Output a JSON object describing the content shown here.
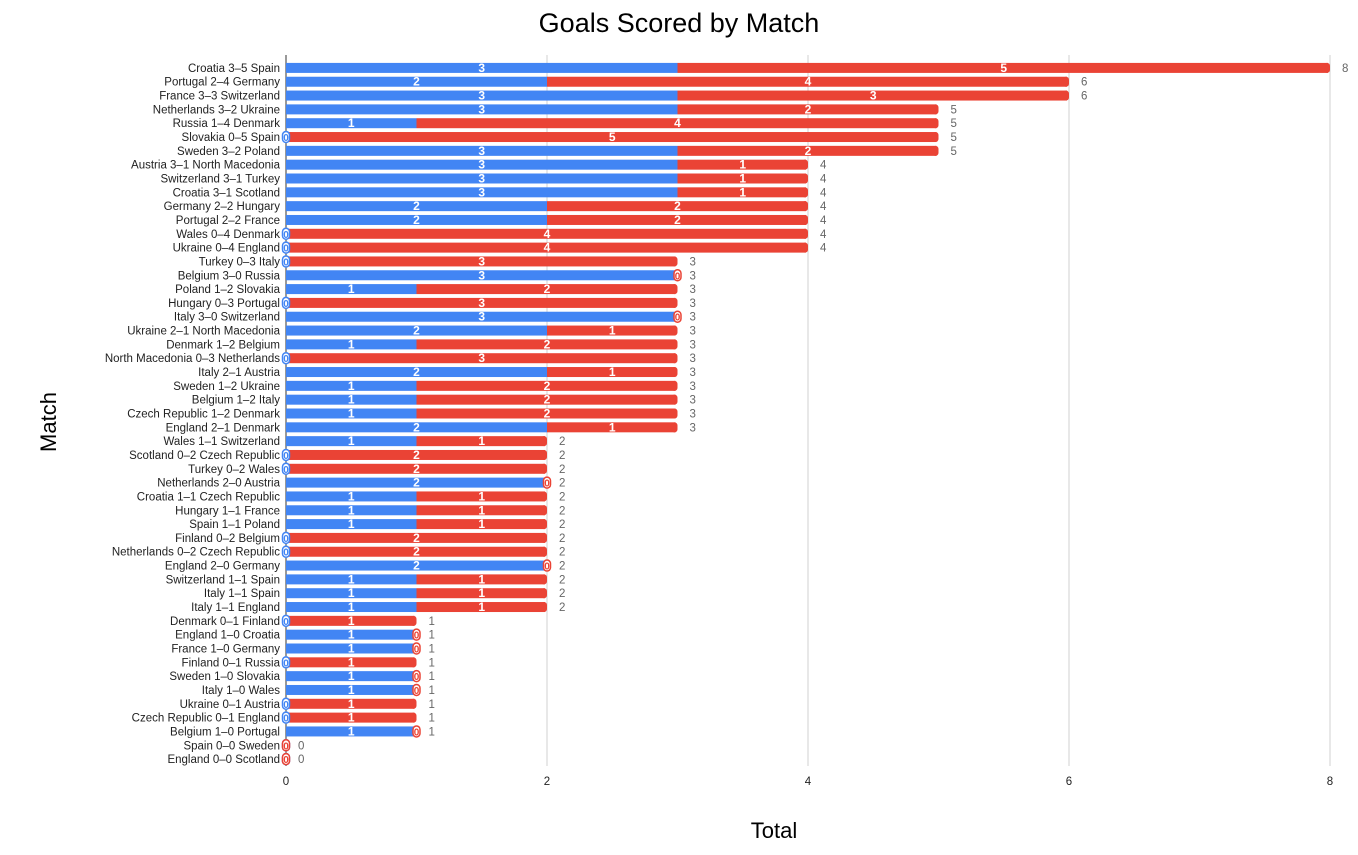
{
  "chart_data": {
    "type": "bar",
    "orientation": "horizontal",
    "stacked": true,
    "title": "Goals Scored by Match",
    "xlabel": "Total",
    "ylabel": "Match",
    "xlim": [
      0,
      8
    ],
    "x_ticks": [
      "0",
      "2",
      "4",
      "6",
      "8"
    ],
    "grid": "vertical",
    "legend": "none",
    "colors": {
      "series1": "#4285f4",
      "series2": "#ea4335",
      "total_label": "#666666"
    },
    "categories": [
      "Croatia 3–5 Spain",
      "Portugal 2–4 Germany",
      "France 3–3 Switzerland",
      "Netherlands 3–2 Ukraine",
      "Russia 1–4 Denmark",
      "Slovakia 0–5 Spain",
      "Sweden 3–2 Poland",
      "Austria 3–1 North Macedonia",
      "Switzerland 3–1 Turkey",
      "Croatia 3–1 Scotland",
      "Germany 2–2 Hungary",
      "Portugal 2–2 France",
      "Wales 0–4 Denmark",
      "Ukraine 0–4 England",
      "Turkey 0–3 Italy",
      "Belgium 3–0 Russia",
      "Poland 1–2 Slovakia",
      "Hungary 0–3 Portugal",
      "Italy 3–0 Switzerland",
      "Ukraine 2–1 North Macedonia",
      "Denmark 1–2 Belgium",
      "North Macedonia 0–3 Netherlands",
      "Italy 2–1 Austria",
      "Sweden 1–2 Ukraine",
      "Belgium 1–2 Italy",
      "Czech Republic 1–2 Denmark",
      "England 2–1 Denmark",
      "Wales 1–1 Switzerland",
      "Scotland 0–2 Czech Republic",
      "Turkey 0–2 Wales",
      "Netherlands 2–0 Austria",
      "Croatia 1–1 Czech Republic",
      "Hungary 1–1 France",
      "Spain 1–1 Poland",
      "Finland 0–2 Belgium",
      "Netherlands 0–2 Czech Republic",
      "England 2–0 Germany",
      "Switzerland 1–1 Spain",
      "Italy 1–1 Spain",
      "Italy 1–1 England",
      "Denmark 0–1 Finland",
      "England 1–0 Croatia",
      "France 1–0 Germany",
      "Finland 0–1 Russia",
      "Sweden 1–0 Slovakia",
      "Italy 1–0 Wales",
      "Ukraine 0–1 Austria",
      "Czech Republic 0–1 England",
      "Belgium 1–0 Portugal",
      "Spain 0–0 Sweden",
      "England 0–0 Scotland"
    ],
    "series": [
      {
        "values": [
          3,
          2,
          3,
          3,
          1,
          0,
          3,
          3,
          3,
          3,
          2,
          2,
          0,
          0,
          0,
          3,
          1,
          0,
          3,
          2,
          1,
          0,
          2,
          1,
          1,
          1,
          2,
          1,
          0,
          0,
          2,
          1,
          1,
          1,
          0,
          0,
          2,
          1,
          1,
          1,
          0,
          1,
          1,
          0,
          1,
          1,
          0,
          0,
          1,
          0,
          0
        ]
      },
      {
        "values": [
          5,
          4,
          3,
          2,
          4,
          5,
          2,
          1,
          1,
          1,
          2,
          2,
          4,
          4,
          3,
          0,
          2,
          3,
          0,
          1,
          2,
          3,
          1,
          2,
          2,
          2,
          1,
          1,
          2,
          2,
          0,
          1,
          1,
          1,
          2,
          2,
          0,
          1,
          1,
          1,
          1,
          0,
          0,
          1,
          0,
          0,
          1,
          1,
          0,
          0,
          0
        ]
      }
    ],
    "totals": [
      8,
      6,
      6,
      5,
      5,
      5,
      5,
      4,
      4,
      4,
      4,
      4,
      4,
      4,
      3,
      3,
      3,
      3,
      3,
      3,
      3,
      3,
      3,
      3,
      3,
      3,
      3,
      2,
      2,
      2,
      2,
      2,
      2,
      2,
      2,
      2,
      2,
      2,
      2,
      2,
      1,
      1,
      1,
      1,
      1,
      1,
      1,
      1,
      1,
      0,
      0
    ]
  }
}
